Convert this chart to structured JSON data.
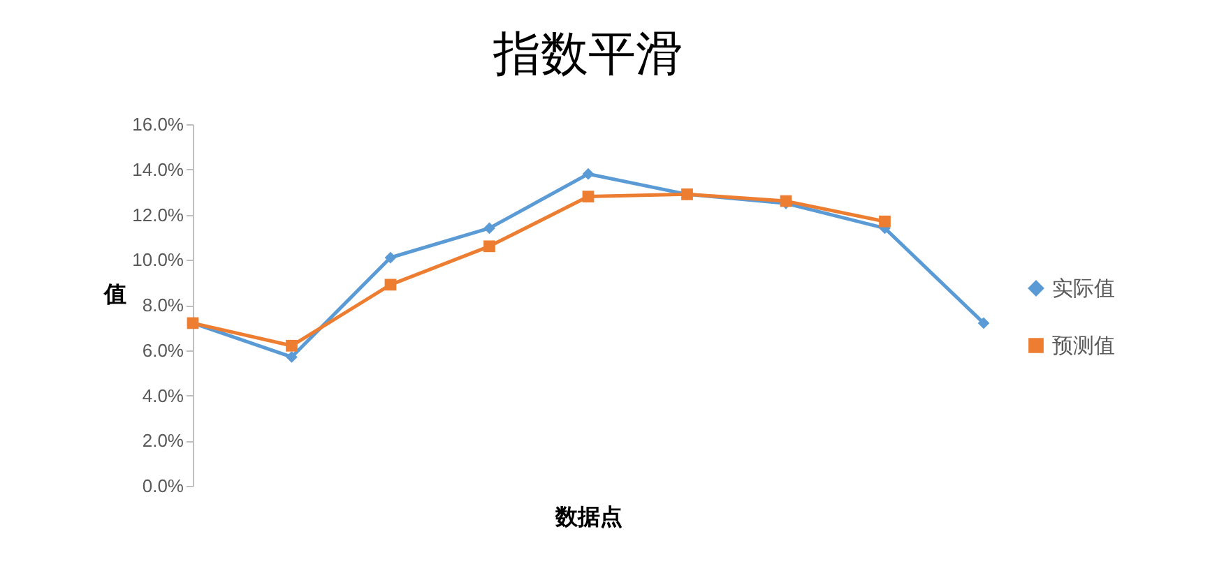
{
  "chart_data": {
    "type": "line",
    "title": "指数平滑",
    "xlabel": "数据点",
    "ylabel": "值",
    "categories": [
      null,
      null,
      null,
      null,
      null,
      null,
      null,
      null,
      null
    ],
    "series": [
      {
        "name": "实际值",
        "color": "#5b9bd5",
        "marker": "diamond",
        "values": [
          7.2,
          5.7,
          10.1,
          11.4,
          13.8,
          12.9,
          12.5,
          11.4,
          7.2
        ]
      },
      {
        "name": "预测值",
        "color": "#ed7d31",
        "marker": "square",
        "values": [
          7.2,
          6.2,
          8.9,
          10.6,
          12.8,
          12.9,
          12.6,
          11.7,
          null
        ]
      }
    ],
    "ylim": [
      0,
      16
    ],
    "yticks": [
      {
        "value": 0,
        "label": "0.0%"
      },
      {
        "value": 2,
        "label": "2.0%"
      },
      {
        "value": 4,
        "label": "4.0%"
      },
      {
        "value": 6,
        "label": "6.0%"
      },
      {
        "value": 8,
        "label": "8.0%"
      },
      {
        "value": 10,
        "label": "10.0%"
      },
      {
        "value": 12,
        "label": "12.0%"
      },
      {
        "value": 14,
        "label": "14.0%"
      },
      {
        "value": 16,
        "label": "16.0%"
      }
    ],
    "grid": false,
    "legend": "right",
    "line_style": "solid",
    "tick_labels": "y"
  }
}
